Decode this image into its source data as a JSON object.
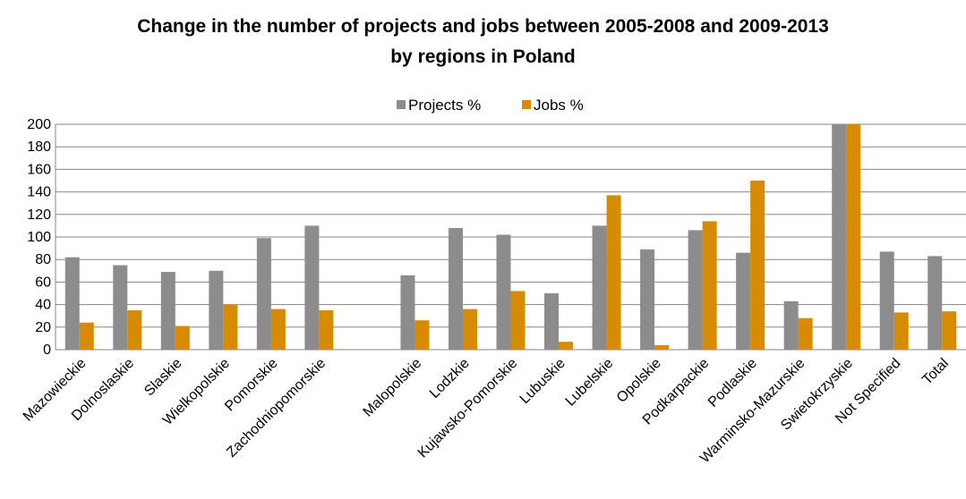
{
  "chart_data": {
    "type": "bar",
    "title_line1": "Change in the number of projects and jobs between 2005-2008 and 2009-2013",
    "title_line2": "by regions in Poland",
    "xlabel": "",
    "ylabel": "",
    "ylim": [
      0,
      200
    ],
    "yticks": [
      0,
      20,
      40,
      60,
      80,
      100,
      120,
      140,
      160,
      180,
      200
    ],
    "grid": true,
    "legend_position": "top-center",
    "categories": [
      "Mazowieckie",
      "Dolnoslaskie",
      "Slaskie",
      "Wielkopolskie",
      "Pomorskie",
      "Zachodniopomorskie",
      "",
      "Malopolskie",
      "Lodzkie",
      "Kujawsko-Pomorskie",
      "Lubuskie",
      "Lubelskie",
      "Opolskie",
      "Podkarpackie",
      "Podlaskie",
      "Warminsko-Mazurskie",
      "Swietokrzyskie",
      "Not Specified",
      "Total"
    ],
    "series": [
      {
        "name": "Projects %",
        "color": "#8c8c8c",
        "values": [
          82,
          75,
          69,
          70,
          99,
          110,
          null,
          66,
          108,
          102,
          50,
          110,
          89,
          106,
          86,
          43,
          200,
          87,
          83
        ]
      },
      {
        "name": "Jobs %",
        "color": "#d68b00",
        "values": [
          24,
          35,
          21,
          40,
          36,
          35,
          null,
          26,
          36,
          52,
          7,
          137,
          4,
          114,
          150,
          28,
          200,
          33,
          34
        ]
      }
    ]
  }
}
